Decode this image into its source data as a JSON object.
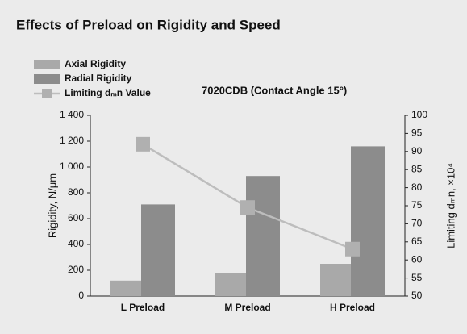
{
  "chart_data": {
    "type": "bar",
    "title": "Effects of Preload on Rigidity and Speed",
    "annotation": "7020CDB (Contact Angle 15°)",
    "y_label": "Rigidity, N/μm",
    "y2_label": "Limiting dₘn, ×10⁴",
    "categories": [
      "L Preload",
      "M Preload",
      "H Preload"
    ],
    "series": [
      {
        "name": "Axial Rigidity",
        "color": "#a9a9a9",
        "values": [
          120,
          180,
          250
        ]
      },
      {
        "name": "Radial Rigidity",
        "color": "#8c8c8c",
        "values": [
          710,
          930,
          1160
        ]
      },
      {
        "name": "Limiting dₘn Value",
        "color": "#bdbdbd",
        "type": "line",
        "axis": "y2",
        "values": [
          92,
          74.5,
          63
        ]
      }
    ],
    "ylim": [
      0,
      1400
    ],
    "yticks": [
      0,
      200,
      400,
      600,
      800,
      {
        "value": 1000,
        "label": "1 000"
      },
      {
        "value": 1200,
        "label": "1 200"
      },
      {
        "value": 1400,
        "label": "1 400"
      }
    ],
    "y2lim": [
      50,
      100
    ],
    "y2ticks": [
      50,
      55,
      60,
      65,
      70,
      75,
      80,
      85,
      90,
      95,
      100
    ],
    "legend": "upper left",
    "grid": false
  }
}
